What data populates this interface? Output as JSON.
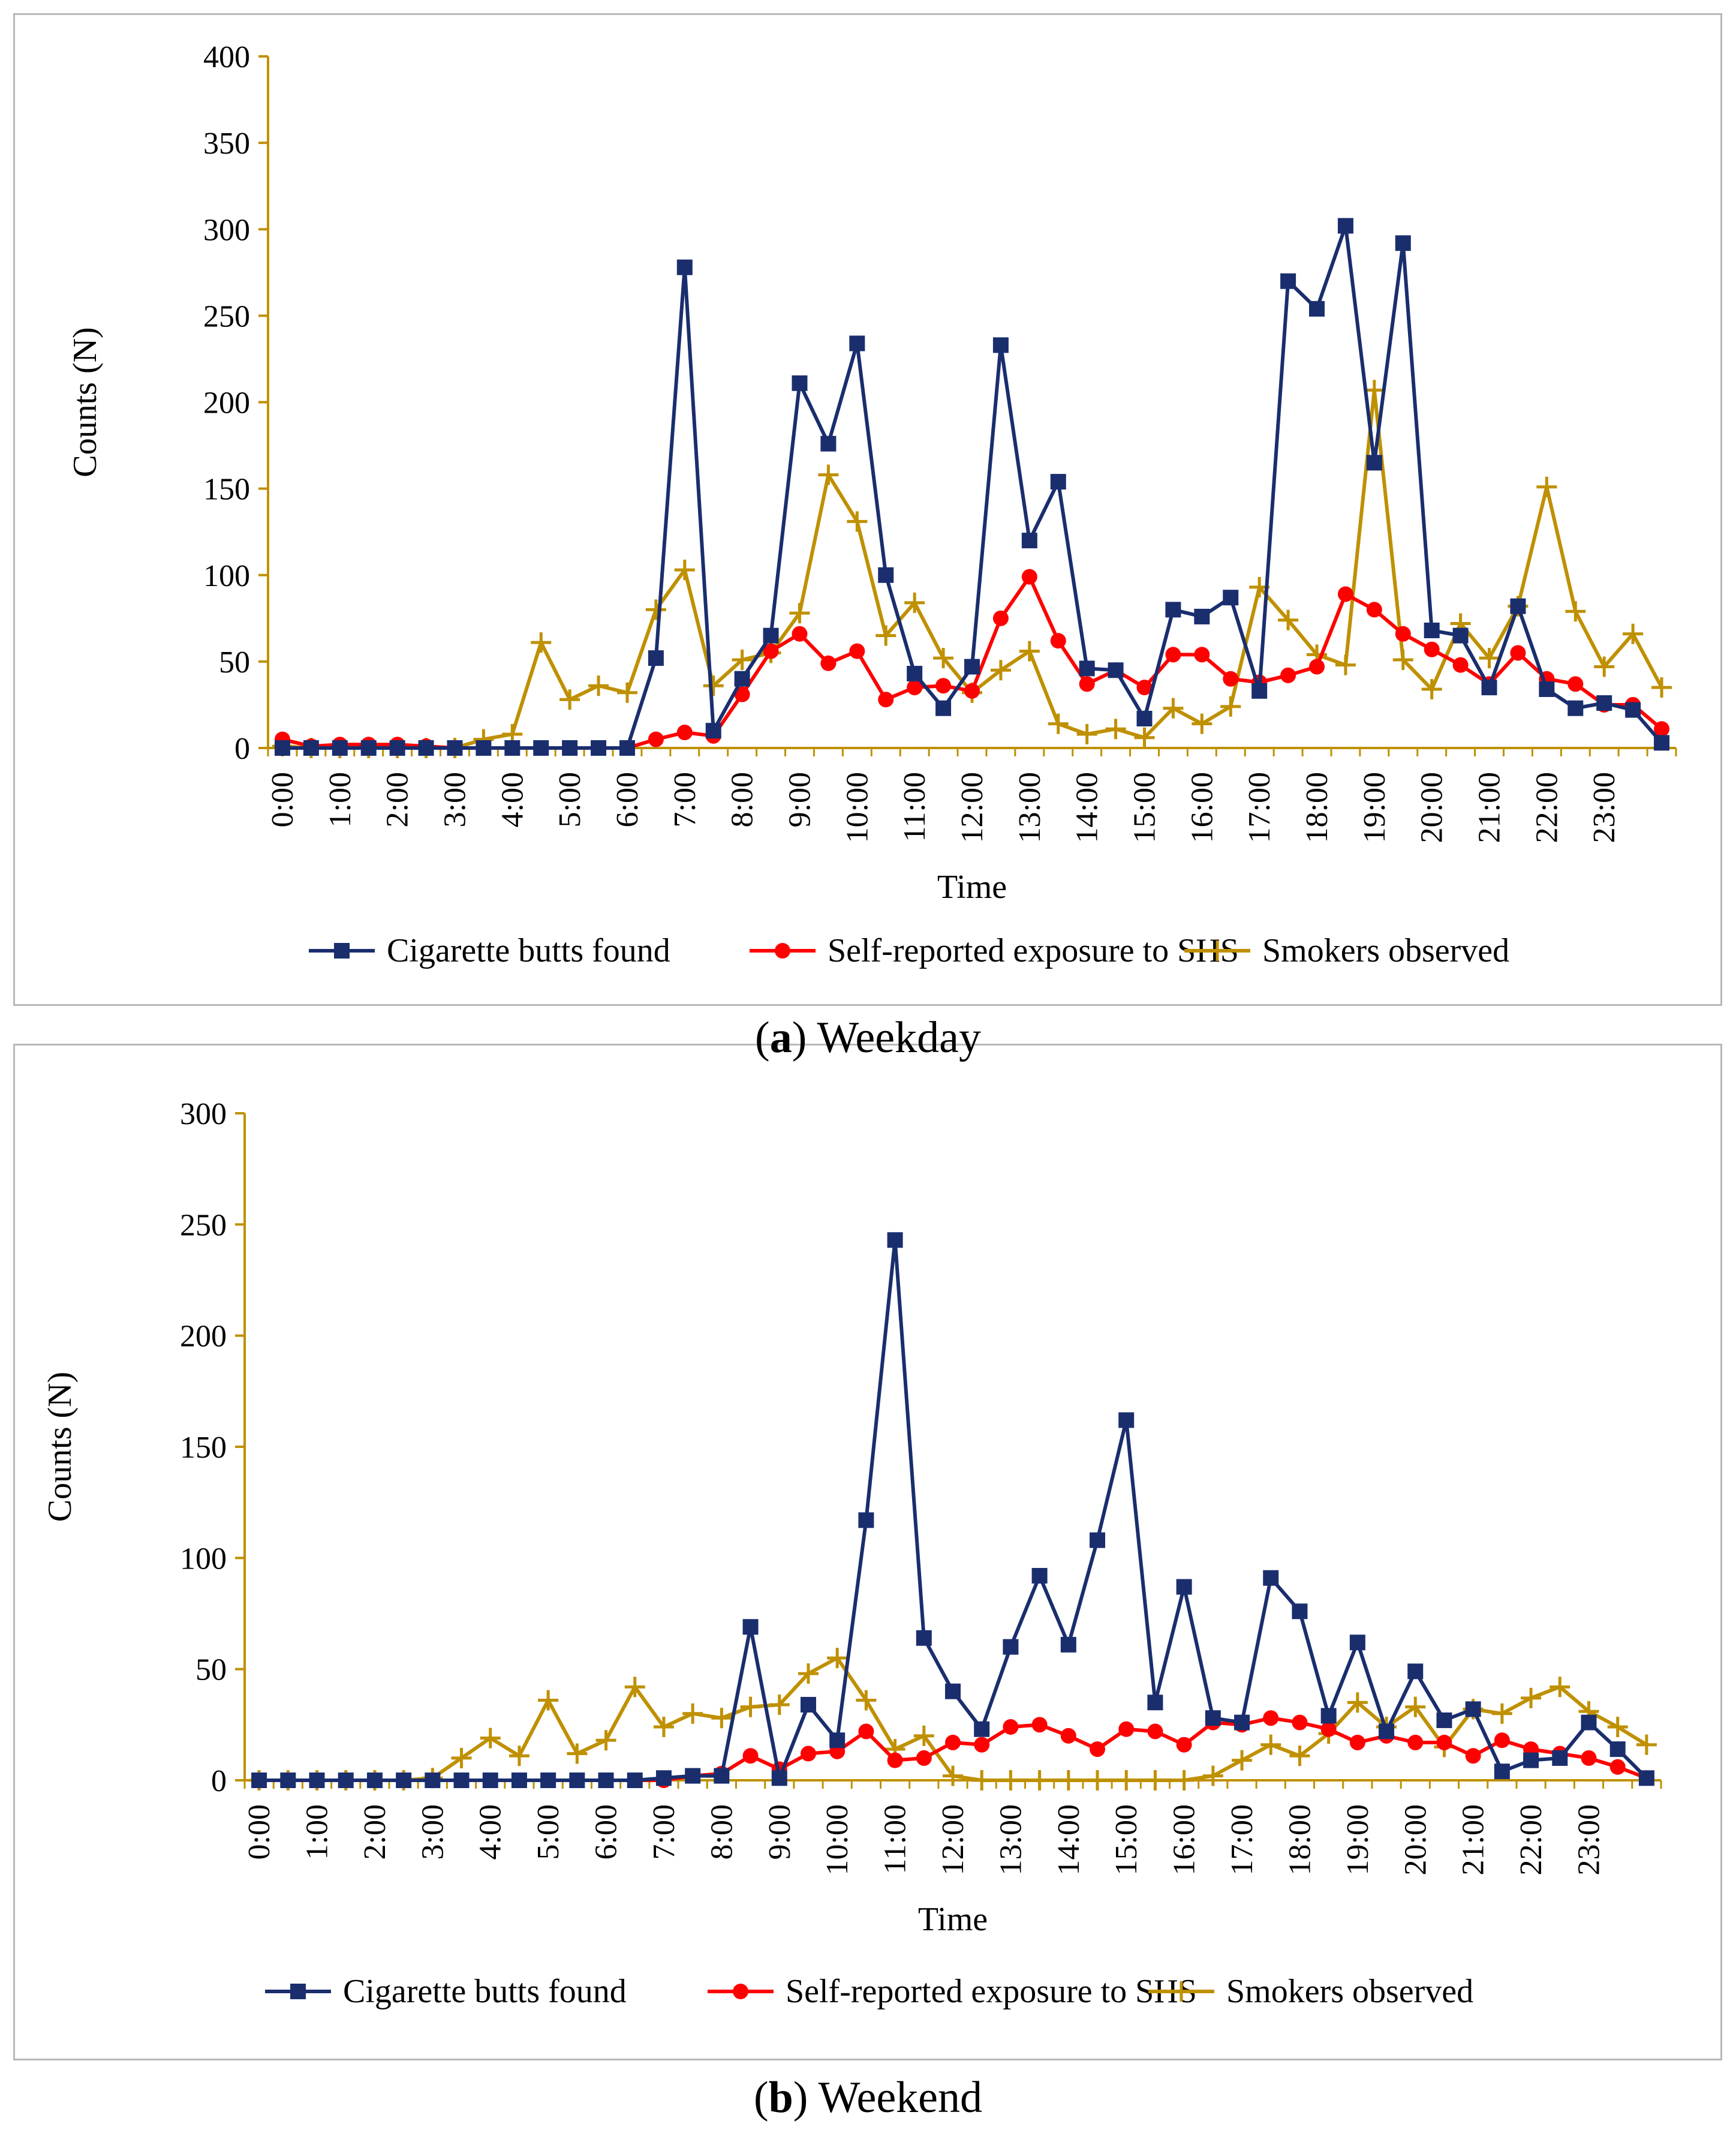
{
  "figure": {
    "panels": [
      {
        "letter": "a",
        "caption": "Weekday"
      },
      {
        "letter": "b",
        "caption": "Weekend"
      }
    ]
  },
  "colors": {
    "cigarette_butts": "#1a2e6e",
    "self_reported": "#ff0000",
    "smokers": "#bf9000",
    "axis": "#bf9000",
    "frame": "#b8b8b8"
  },
  "chart_data": [
    {
      "type": "line",
      "title": "",
      "xlabel": "Time",
      "ylabel": "Counts (N)",
      "ylim": [
        0,
        400
      ],
      "yticks": [
        0,
        50,
        100,
        150,
        200,
        250,
        300,
        350,
        400
      ],
      "grid": false,
      "legend_position": "bottom",
      "tick_labels": [
        "0:00",
        "1:00",
        "2:00",
        "3:00",
        "4:00",
        "5:00",
        "6:00",
        "7:00",
        "8:00",
        "9:00",
        "10:00",
        "11:00",
        "12:00",
        "13:00",
        "14:00",
        "15:00",
        "16:00",
        "17:00",
        "18:00",
        "19:00",
        "20:00",
        "21:00",
        "22:00",
        "23:00"
      ],
      "series": [
        {
          "name": "Cigarette butts found",
          "marker": "square",
          "values": [
            0,
            0,
            0,
            0,
            0,
            0,
            0,
            0,
            0,
            0,
            0,
            0,
            0,
            52,
            278,
            10,
            40,
            65,
            211,
            176,
            234,
            100,
            43,
            23,
            47,
            233,
            120,
            154,
            46,
            45,
            17,
            80,
            76,
            87,
            33,
            270,
            254,
            302,
            165,
            292,
            68,
            65,
            35,
            82,
            34,
            23,
            26,
            22,
            3
          ]
        },
        {
          "name": "Self-reported exposure to SHS",
          "marker": "circle",
          "values": [
            5,
            1,
            2,
            2,
            2,
            1,
            0,
            0,
            0,
            0,
            0,
            0,
            0,
            5,
            9,
            7,
            31,
            56,
            66,
            49,
            56,
            28,
            35,
            36,
            33,
            75,
            99,
            62,
            37,
            45,
            35,
            54,
            54,
            40,
            38,
            42,
            47,
            89,
            80,
            66,
            57,
            48,
            37,
            55,
            40,
            37,
            25,
            25,
            11
          ]
        },
        {
          "name": "Smokers observed",
          "marker": "plus",
          "values": [
            1,
            0,
            0,
            0,
            0,
            0,
            0,
            5,
            8,
            61,
            28,
            36,
            32,
            80,
            103,
            36,
            51,
            55,
            78,
            158,
            131,
            65,
            84,
            52,
            32,
            45,
            56,
            14,
            8,
            11,
            6,
            23,
            14,
            24,
            93,
            74,
            54,
            48,
            207,
            51,
            34,
            72,
            52,
            82,
            151,
            79,
            47,
            66,
            35
          ]
        }
      ]
    },
    {
      "type": "line",
      "title": "",
      "xlabel": "Time",
      "ylabel": "Counts (N)",
      "ylim": [
        0,
        300
      ],
      "yticks": [
        0,
        50,
        100,
        150,
        200,
        250,
        300
      ],
      "grid": false,
      "legend_position": "bottom",
      "tick_labels": [
        "0:00",
        "1:00",
        "2:00",
        "3:00",
        "4:00",
        "5:00",
        "6:00",
        "7:00",
        "8:00",
        "9:00",
        "10:00",
        "11:00",
        "12:00",
        "13:00",
        "14:00",
        "15:00",
        "16:00",
        "17:00",
        "18:00",
        "19:00",
        "20:00",
        "21:00",
        "22:00",
        "23:00"
      ],
      "series": [
        {
          "name": "Cigarette butts found",
          "marker": "square",
          "values": [
            0,
            0,
            0,
            0,
            0,
            0,
            0,
            0,
            0,
            0,
            0,
            0,
            0,
            0,
            1,
            2,
            2,
            69,
            1,
            34,
            18,
            117,
            243,
            64,
            40,
            23,
            60,
            92,
            61,
            108,
            162,
            35,
            87,
            28,
            26,
            91,
            76,
            29,
            62,
            22,
            49,
            27,
            32,
            4,
            9,
            10,
            26,
            14,
            1
          ]
        },
        {
          "name": "Self-reported exposure to SHS",
          "marker": "circle",
          "values": [
            0,
            0,
            0,
            0,
            0,
            0,
            0,
            0,
            0,
            0,
            0,
            0,
            0,
            0,
            0,
            2,
            3,
            11,
            5,
            12,
            13,
            22,
            9,
            10,
            17,
            16,
            24,
            25,
            20,
            14,
            23,
            22,
            16,
            26,
            25,
            28,
            26,
            23,
            17,
            20,
            17,
            17,
            11,
            18,
            14,
            12,
            10,
            6,
            1
          ]
        },
        {
          "name": "Smokers observed",
          "marker": "plus",
          "values": [
            0,
            0,
            0,
            0,
            0,
            0,
            1,
            10,
            19,
            11,
            36,
            12,
            18,
            42,
            24,
            30,
            28,
            33,
            34,
            48,
            55,
            36,
            14,
            20,
            2,
            0,
            0,
            0,
            0,
            0,
            0,
            0,
            0,
            2,
            9,
            16,
            11,
            21,
            35,
            24,
            33,
            15,
            32,
            30,
            37,
            42,
            31,
            24,
            16
          ]
        }
      ]
    }
  ]
}
